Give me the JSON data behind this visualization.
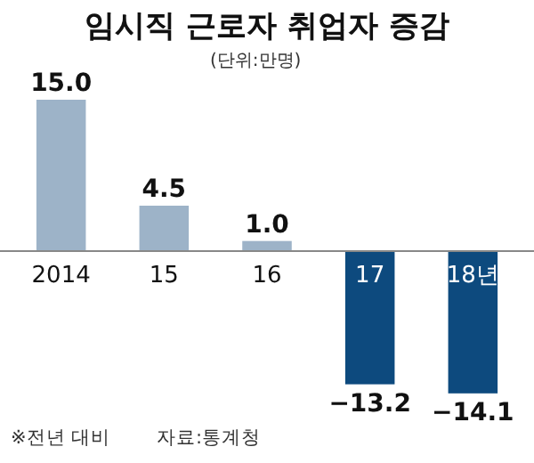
{
  "chart_data": {
    "type": "bar",
    "title": "임시직 근로자 취업자 증감",
    "subtitle": "(단위:만명)",
    "categories": [
      "2014",
      "15",
      "16",
      "17",
      "18년"
    ],
    "values": [
      15.0,
      4.5,
      1.0,
      -13.2,
      -14.1
    ],
    "colors": [
      "#9db3c8",
      "#9db3c8",
      "#9db3c8",
      "#0d4a7e",
      "#0d4a7e"
    ],
    "value_labels": [
      "15.0",
      "4.5",
      "1.0",
      "−13.2",
      "−14.1"
    ],
    "annotations": [
      "※전년 대비",
      "자료:통계청"
    ]
  }
}
